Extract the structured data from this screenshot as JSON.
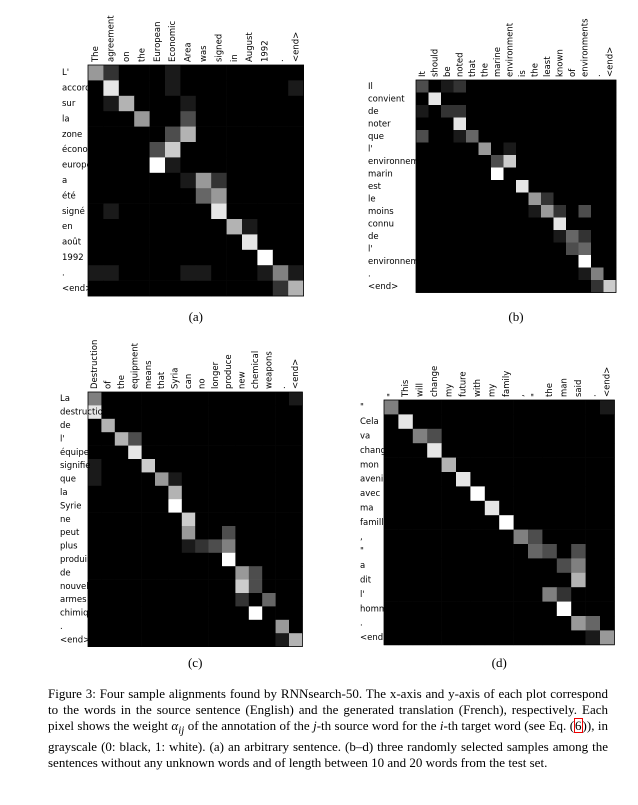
{
  "figures": [
    {
      "label": "(a)",
      "x_words": [
        "The",
        "agreement",
        "on",
        "the",
        "European",
        "Economic",
        "Area",
        "was",
        "signed",
        "in",
        "August",
        "1992",
        ".",
        "<end>"
      ],
      "y_words": [
        "L'",
        "accord",
        "sur",
        "la",
        "zone",
        "économique",
        "européenne",
        "a",
        "été",
        "signé",
        "en",
        "août",
        "1992",
        ".",
        "<end>"
      ],
      "weights": [
        [
          0.6,
          0.2,
          0,
          0,
          0,
          0.1,
          0,
          0,
          0,
          0,
          0,
          0,
          0,
          0
        ],
        [
          0,
          0.9,
          0,
          0,
          0,
          0.1,
          0,
          0,
          0,
          0,
          0,
          0,
          0,
          0.1
        ],
        [
          0,
          0.1,
          0.7,
          0,
          0,
          0,
          0.1,
          0,
          0,
          0,
          0,
          0,
          0,
          0
        ],
        [
          0,
          0,
          0,
          0.6,
          0,
          0,
          0.3,
          0,
          0,
          0,
          0,
          0,
          0,
          0
        ],
        [
          0,
          0,
          0,
          0,
          0,
          0.3,
          0.7,
          0,
          0,
          0,
          0,
          0,
          0,
          0
        ],
        [
          0,
          0,
          0,
          0,
          0.3,
          0.8,
          0,
          0,
          0,
          0,
          0,
          0,
          0,
          0
        ],
        [
          0,
          0,
          0,
          0,
          1,
          0.1,
          0,
          0,
          0,
          0,
          0,
          0,
          0,
          0
        ],
        [
          0,
          0,
          0,
          0,
          0,
          0,
          0.1,
          0.6,
          0.2,
          0,
          0,
          0,
          0,
          0
        ],
        [
          0,
          0,
          0,
          0,
          0,
          0,
          0,
          0.4,
          0.6,
          0,
          0,
          0,
          0,
          0
        ],
        [
          0,
          0.1,
          0,
          0,
          0,
          0,
          0,
          0,
          0.9,
          0,
          0,
          0,
          0,
          0
        ],
        [
          0,
          0,
          0,
          0,
          0,
          0,
          0,
          0,
          0,
          0.7,
          0.1,
          0,
          0,
          0
        ],
        [
          0,
          0,
          0,
          0,
          0,
          0,
          0,
          0,
          0,
          0,
          0.9,
          0,
          0,
          0
        ],
        [
          0,
          0,
          0,
          0,
          0,
          0,
          0,
          0,
          0,
          0,
          0,
          1,
          0,
          0
        ],
        [
          0.1,
          0.1,
          0,
          0,
          0,
          0,
          0.1,
          0.1,
          0,
          0,
          0,
          0.1,
          0.5,
          0.1
        ],
        [
          0,
          0,
          0,
          0,
          0,
          0,
          0,
          0,
          0,
          0,
          0,
          0,
          0.2,
          0.7
        ]
      ]
    },
    {
      "label": "(b)",
      "x_words": [
        "It",
        "should",
        "be",
        "noted",
        "that",
        "the",
        "marine",
        "environment",
        "is",
        "the",
        "least",
        "known",
        "of",
        "environments",
        ".",
        "<end>"
      ],
      "y_words": [
        "Il",
        "convient",
        "de",
        "noter",
        "que",
        "l'",
        "environnement",
        "marin",
        "est",
        "le",
        "moins",
        "connu",
        "de",
        "l'",
        "environnement",
        ".",
        "<end>"
      ],
      "weights": [
        [
          0.3,
          0,
          0.1,
          0.2,
          0,
          0,
          0,
          0,
          0,
          0,
          0,
          0,
          0,
          0,
          0,
          0
        ],
        [
          0,
          0.9,
          0,
          0,
          0,
          0,
          0,
          0,
          0,
          0,
          0,
          0,
          0,
          0,
          0,
          0
        ],
        [
          0.1,
          0,
          0.2,
          0.2,
          0,
          0,
          0,
          0,
          0,
          0,
          0,
          0,
          0,
          0,
          0,
          0
        ],
        [
          0,
          0,
          0,
          0.9,
          0,
          0,
          0,
          0,
          0,
          0,
          0,
          0,
          0,
          0,
          0,
          0
        ],
        [
          0.3,
          0,
          0,
          0.1,
          0.4,
          0,
          0,
          0,
          0,
          0,
          0,
          0,
          0,
          0,
          0,
          0
        ],
        [
          0,
          0,
          0,
          0,
          0,
          0.6,
          0,
          0.1,
          0,
          0,
          0,
          0,
          0,
          0,
          0,
          0
        ],
        [
          0,
          0,
          0,
          0,
          0,
          0,
          0.3,
          0.8,
          0,
          0,
          0,
          0,
          0,
          0,
          0,
          0
        ],
        [
          0,
          0,
          0,
          0,
          0,
          0,
          1,
          0,
          0,
          0,
          0,
          0,
          0,
          0,
          0,
          0
        ],
        [
          0,
          0,
          0,
          0,
          0,
          0,
          0,
          0,
          0.9,
          0,
          0,
          0,
          0,
          0,
          0,
          0
        ],
        [
          0,
          0,
          0,
          0,
          0,
          0,
          0,
          0,
          0,
          0.6,
          0.2,
          0,
          0,
          0,
          0,
          0
        ],
        [
          0,
          0,
          0,
          0,
          0,
          0,
          0,
          0,
          0,
          0.1,
          0.6,
          0.2,
          0,
          0.3,
          0,
          0
        ],
        [
          0,
          0,
          0,
          0,
          0,
          0,
          0,
          0,
          0,
          0,
          0,
          0.9,
          0,
          0,
          0,
          0
        ],
        [
          0,
          0,
          0,
          0,
          0,
          0,
          0,
          0,
          0,
          0,
          0,
          0.1,
          0.4,
          0.2,
          0,
          0
        ],
        [
          0,
          0,
          0,
          0,
          0,
          0,
          0,
          0,
          0,
          0,
          0,
          0,
          0.3,
          0.4,
          0,
          0
        ],
        [
          0,
          0,
          0,
          0,
          0,
          0,
          0,
          0,
          0,
          0,
          0,
          0,
          0,
          1,
          0,
          0
        ],
        [
          0,
          0,
          0,
          0,
          0,
          0,
          0,
          0,
          0,
          0,
          0,
          0,
          0,
          0.1,
          0.5,
          0
        ],
        [
          0,
          0,
          0,
          0,
          0,
          0,
          0,
          0,
          0,
          0,
          0,
          0,
          0,
          0,
          0.2,
          0.8
        ]
      ]
    },
    {
      "label": "(c)",
      "x_words": [
        "Destruction",
        "of",
        "the",
        "equipment",
        "means",
        "that",
        "Syria",
        "can",
        "no",
        "longer",
        "produce",
        "new",
        "chemical",
        "weapons",
        ".",
        "<end>"
      ],
      "y_words": [
        "La",
        "destruction",
        "de",
        "l'",
        "équipement",
        "signifie",
        "que",
        "la",
        "Syrie",
        "ne",
        "peut",
        "plus",
        "produire",
        "de",
        "nouvelles",
        "armes",
        "chimiques",
        ".",
        "<end>"
      ],
      "weights": [
        [
          0.5,
          0,
          0,
          0,
          0,
          0,
          0,
          0,
          0,
          0,
          0,
          0,
          0,
          0,
          0,
          0.1
        ],
        [
          0.9,
          0,
          0,
          0,
          0,
          0,
          0,
          0,
          0,
          0,
          0,
          0,
          0,
          0,
          0,
          0
        ],
        [
          0,
          0.7,
          0,
          0,
          0,
          0,
          0,
          0,
          0,
          0,
          0,
          0,
          0,
          0,
          0,
          0
        ],
        [
          0,
          0,
          0.7,
          0.3,
          0,
          0,
          0,
          0,
          0,
          0,
          0,
          0,
          0,
          0,
          0,
          0
        ],
        [
          0,
          0,
          0,
          0.9,
          0,
          0,
          0,
          0,
          0,
          0,
          0,
          0,
          0,
          0,
          0,
          0
        ],
        [
          0.1,
          0,
          0,
          0,
          0.8,
          0,
          0,
          0,
          0,
          0,
          0,
          0,
          0,
          0,
          0,
          0
        ],
        [
          0.1,
          0,
          0,
          0,
          0,
          0.6,
          0.1,
          0,
          0,
          0,
          0,
          0,
          0,
          0,
          0,
          0
        ],
        [
          0,
          0,
          0,
          0,
          0,
          0,
          0.7,
          0,
          0,
          0,
          0,
          0,
          0,
          0,
          0,
          0
        ],
        [
          0,
          0,
          0,
          0,
          0,
          0,
          1,
          0,
          0,
          0,
          0,
          0,
          0,
          0,
          0,
          0
        ],
        [
          0,
          0,
          0,
          0,
          0,
          0,
          0,
          0.8,
          0,
          0,
          0,
          0,
          0,
          0,
          0,
          0
        ],
        [
          0,
          0,
          0,
          0,
          0,
          0,
          0,
          0.6,
          0,
          0,
          0.3,
          0,
          0,
          0,
          0,
          0
        ],
        [
          0,
          0,
          0,
          0,
          0,
          0,
          0,
          0.1,
          0.2,
          0.3,
          0.5,
          0,
          0,
          0,
          0,
          0
        ],
        [
          0,
          0,
          0,
          0,
          0,
          0,
          0,
          0,
          0,
          0,
          1,
          0,
          0,
          0,
          0,
          0
        ],
        [
          0,
          0,
          0,
          0,
          0,
          0,
          0,
          0,
          0,
          0,
          0,
          0.6,
          0.3,
          0,
          0,
          0
        ],
        [
          0,
          0,
          0,
          0,
          0,
          0,
          0,
          0,
          0,
          0,
          0,
          0.8,
          0.3,
          0,
          0,
          0
        ],
        [
          0,
          0,
          0,
          0,
          0,
          0,
          0,
          0,
          0,
          0,
          0,
          0.2,
          0,
          0.4,
          0,
          0
        ],
        [
          0,
          0,
          0,
          0,
          0,
          0,
          0,
          0,
          0,
          0,
          0,
          0,
          1,
          0,
          0,
          0
        ],
        [
          0,
          0,
          0,
          0,
          0,
          0,
          0,
          0,
          0,
          0,
          0,
          0,
          0,
          0,
          0.6,
          0
        ],
        [
          0,
          0,
          0,
          0,
          0,
          0,
          0,
          0,
          0,
          0,
          0,
          0,
          0,
          0,
          0.1,
          0.7
        ]
      ]
    },
    {
      "label": "(d)",
      "x_words": [
        "\"",
        "This",
        "will",
        "change",
        "my",
        "future",
        "with",
        "my",
        "family",
        ",",
        "\"",
        "the",
        "man",
        "said",
        ".",
        "<end>"
      ],
      "y_words": [
        "\"",
        "Cela",
        "va",
        "changer",
        "mon",
        "avenir",
        "avec",
        "ma",
        "famille",
        ",",
        "\"",
        "a",
        "dit",
        "l'",
        "homme",
        ".",
        "<end>"
      ],
      "weights": [
        [
          0.5,
          0,
          0,
          0,
          0,
          0,
          0,
          0,
          0,
          0,
          0,
          0,
          0,
          0,
          0,
          0.1
        ],
        [
          0,
          0.9,
          0,
          0,
          0,
          0,
          0,
          0,
          0,
          0,
          0,
          0,
          0,
          0,
          0,
          0
        ],
        [
          0,
          0,
          0.5,
          0.3,
          0,
          0,
          0,
          0,
          0,
          0,
          0,
          0,
          0,
          0,
          0,
          0
        ],
        [
          0,
          0,
          0,
          0.9,
          0,
          0,
          0,
          0,
          0,
          0,
          0,
          0,
          0,
          0,
          0,
          0
        ],
        [
          0,
          0,
          0,
          0,
          0.7,
          0,
          0,
          0,
          0,
          0,
          0,
          0,
          0,
          0,
          0,
          0
        ],
        [
          0,
          0,
          0,
          0,
          0,
          0.9,
          0,
          0,
          0,
          0,
          0,
          0,
          0,
          0,
          0,
          0
        ],
        [
          0,
          0,
          0,
          0,
          0,
          0,
          1,
          0,
          0,
          0,
          0,
          0,
          0,
          0,
          0,
          0
        ],
        [
          0,
          0,
          0,
          0,
          0,
          0,
          0,
          0.9,
          0,
          0,
          0,
          0,
          0,
          0,
          0,
          0
        ],
        [
          0,
          0,
          0,
          0,
          0,
          0,
          0,
          0,
          1,
          0,
          0,
          0,
          0,
          0,
          0,
          0
        ],
        [
          0,
          0,
          0,
          0,
          0,
          0,
          0,
          0,
          0,
          0.5,
          0.3,
          0,
          0,
          0,
          0,
          0
        ],
        [
          0,
          0,
          0,
          0,
          0,
          0,
          0,
          0,
          0,
          0,
          0.4,
          0.3,
          0,
          0.3,
          0,
          0
        ],
        [
          0,
          0,
          0,
          0,
          0,
          0,
          0,
          0,
          0,
          0,
          0,
          0,
          0.3,
          0.5,
          0,
          0
        ],
        [
          0,
          0,
          0,
          0,
          0,
          0,
          0,
          0,
          0,
          0,
          0,
          0,
          0,
          0.7,
          0,
          0
        ],
        [
          0,
          0,
          0,
          0,
          0,
          0,
          0,
          0,
          0,
          0,
          0,
          0.5,
          0.2,
          0,
          0,
          0
        ],
        [
          0,
          0,
          0,
          0,
          0,
          0,
          0,
          0,
          0,
          0,
          0,
          0,
          1,
          0,
          0,
          0
        ],
        [
          0,
          0,
          0,
          0,
          0,
          0,
          0,
          0,
          0,
          0,
          0,
          0,
          0,
          0.6,
          0.4,
          0
        ],
        [
          0,
          0,
          0,
          0,
          0,
          0,
          0,
          0,
          0,
          0,
          0,
          0,
          0,
          0,
          0.1,
          0.6
        ]
      ]
    }
  ],
  "caption": {
    "label": "Figure 3:",
    "segments": [
      " Four sample alignments found by RNNsearch-50. The x-axis and y-axis of each plot correspond to the words in the source sentence (English) and the generated translation (French), respectively. Each pixel shows the weight ",
      "α",
      "ij",
      " of the annotation of the ",
      "j",
      "-th source word for the ",
      "i",
      "-th target word (see Eq. (",
      "6",
      ")), in grayscale (0: black, 1: white). (a) an arbitrary sentence. (b–d) three randomly selected samples among the sentences without any unknown words and of length between 10 and 20 words from the test set."
    ]
  }
}
